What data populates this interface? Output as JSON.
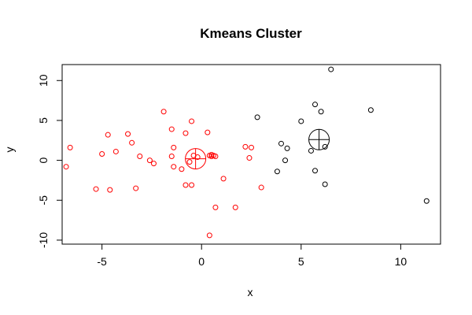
{
  "chart_data": {
    "type": "scatter",
    "title": "Kmeans Cluster",
    "xlabel": "x",
    "ylabel": "y",
    "xlim": [
      -7,
      12
    ],
    "ylim": [
      -10.5,
      12
    ],
    "xticks": [
      -5,
      0,
      5,
      10
    ],
    "yticks": [
      -10,
      -5,
      0,
      5,
      10
    ],
    "xtick_labels": [
      "-5",
      "0",
      "5",
      "10"
    ],
    "ytick_labels": [
      "-10",
      "-5",
      "0",
      "5",
      "10"
    ],
    "grid": false,
    "legend": "none",
    "series": [
      {
        "color": "#ff0000",
        "points": [
          [
            -6.6,
            1.6
          ],
          [
            -6.8,
            -0.8
          ],
          [
            -5.3,
            -3.6
          ],
          [
            -5.0,
            0.8
          ],
          [
            -4.7,
            3.2
          ],
          [
            -4.6,
            -3.7
          ],
          [
            -4.3,
            1.1
          ],
          [
            -3.7,
            3.3
          ],
          [
            -3.5,
            2.2
          ],
          [
            -3.3,
            -3.5
          ],
          [
            -3.1,
            0.5
          ],
          [
            -2.6,
            0.0
          ],
          [
            -2.4,
            -0.4
          ],
          [
            -1.9,
            6.1
          ],
          [
            -1.5,
            3.9
          ],
          [
            -1.5,
            0.5
          ],
          [
            -1.4,
            1.6
          ],
          [
            -1.4,
            -0.8
          ],
          [
            -1.0,
            -1.1
          ],
          [
            -0.8,
            3.4
          ],
          [
            -0.8,
            -3.1
          ],
          [
            -0.6,
            -0.2
          ],
          [
            -0.5,
            -3.1
          ],
          [
            -0.5,
            4.9
          ],
          [
            -0.4,
            0.6
          ],
          [
            -0.2,
            0.4
          ],
          [
            0.3,
            3.5
          ],
          [
            0.4,
            0.6
          ],
          [
            0.5,
            0.5
          ],
          [
            0.6,
            0.6
          ],
          [
            0.7,
            0.5
          ],
          [
            0.5,
            0.7
          ],
          [
            0.4,
            -9.4
          ],
          [
            0.7,
            -5.9
          ],
          [
            1.1,
            -2.3
          ],
          [
            1.7,
            -5.9
          ],
          [
            2.2,
            1.7
          ],
          [
            2.4,
            0.3
          ],
          [
            2.5,
            1.6
          ],
          [
            3.0,
            -3.4
          ]
        ],
        "centroid": [
          -0.3,
          0.2
        ]
      },
      {
        "color": "#000000",
        "points": [
          [
            2.8,
            5.4
          ],
          [
            3.8,
            -1.4
          ],
          [
            4.0,
            2.1
          ],
          [
            4.2,
            0.0
          ],
          [
            4.3,
            1.5
          ],
          [
            5.0,
            4.9
          ],
          [
            5.5,
            1.2
          ],
          [
            5.7,
            -1.3
          ],
          [
            5.7,
            7.0
          ],
          [
            6.0,
            6.1
          ],
          [
            6.2,
            1.7
          ],
          [
            6.2,
            -3.0
          ],
          [
            6.5,
            11.4
          ],
          [
            8.5,
            6.3
          ],
          [
            11.3,
            -5.1
          ]
        ],
        "centroid": [
          5.9,
          2.6
        ]
      }
    ]
  }
}
